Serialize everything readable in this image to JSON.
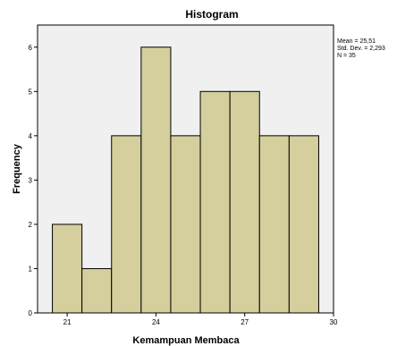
{
  "chart_data": {
    "type": "bar",
    "title": "Histogram",
    "xlabel": "Kemampuan Membaca",
    "ylabel": "Frequency",
    "bin_edges": [
      20.5,
      21.5,
      22.5,
      23.5,
      24.5,
      25.5,
      26.5,
      27.5,
      28.5,
      29.5
    ],
    "values": [
      2,
      1,
      4,
      6,
      4,
      5,
      5,
      4,
      4
    ],
    "xlim": [
      20,
      30
    ],
    "ylim": [
      0,
      6.5
    ],
    "xticks": [
      21,
      24,
      27,
      30
    ],
    "yticks": [
      0,
      1,
      2,
      3,
      4,
      5,
      6
    ],
    "stats": [
      "Mean = 25,51",
      "Std. Dev. = 2,293",
      "N = 35"
    ],
    "legend": "right",
    "grid": false,
    "colors": {
      "plot_background": "#f0f0f0",
      "bar_fill": "#d4cf9d",
      "bar_stroke": "#000000"
    }
  }
}
